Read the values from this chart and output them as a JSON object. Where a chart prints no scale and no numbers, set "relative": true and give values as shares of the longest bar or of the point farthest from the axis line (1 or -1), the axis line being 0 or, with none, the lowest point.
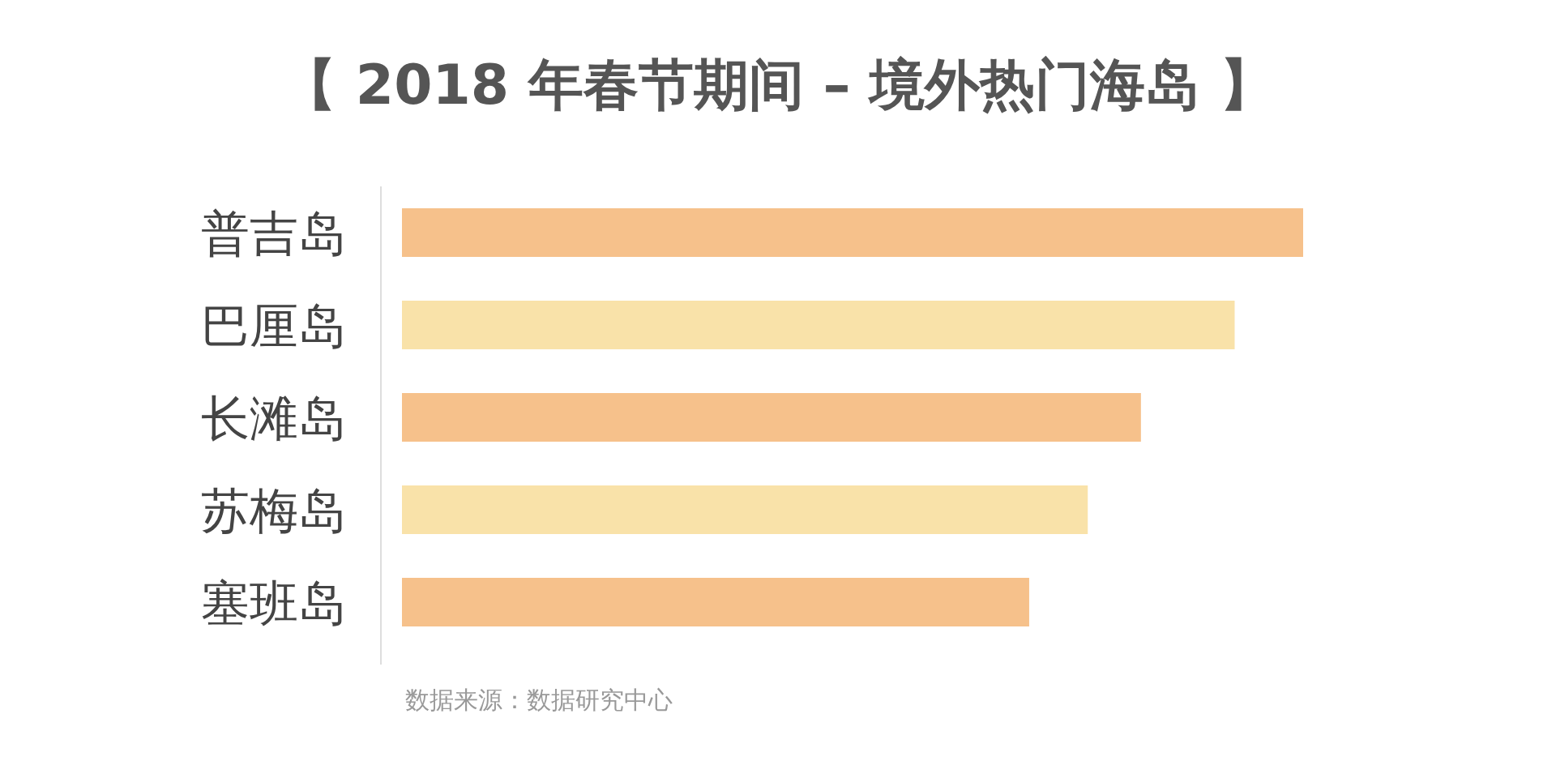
{
  "chart_data": {
    "type": "bar",
    "orientation": "horizontal",
    "relative": true,
    "title": "【 2018 年春节期间 – 境外热门海岛 】",
    "categories": [
      "普吉岛",
      "巴厘岛",
      "长滩岛",
      "苏梅岛",
      "塞班岛"
    ],
    "values": [
      1,
      0.924,
      0.82,
      0.761,
      0.696
    ],
    "colors": [
      "#f6c18b",
      "#f9e2a9",
      "#f6c18b",
      "#f9e2a9",
      "#f6c18b"
    ],
    "annotations": [
      "数据来源：数据研究中心"
    ]
  }
}
